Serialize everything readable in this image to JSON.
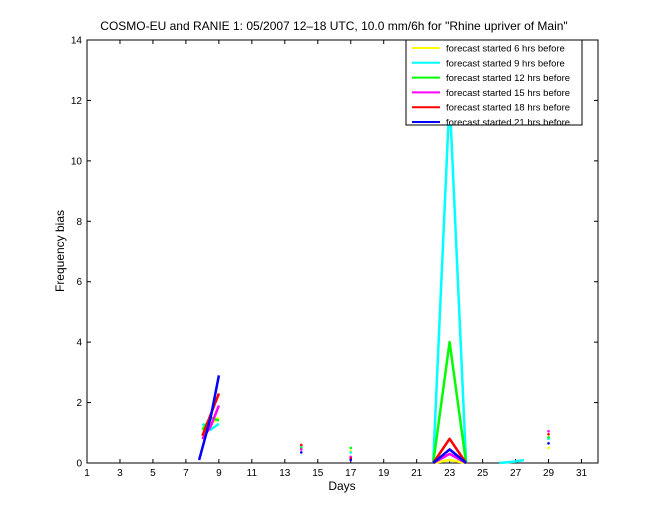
{
  "chart_data": {
    "type": "line",
    "title": "COSMO-EU and RANIE 1: 05/2007 12–18 UTC, 10.0 mm/6h for \"Rhine upriver of Main\"",
    "xlabel": "Days",
    "ylabel": "Frequency bias",
    "xlim": [
      1,
      32
    ],
    "ylim": [
      0,
      14
    ],
    "xticks": [
      1,
      3,
      5,
      7,
      9,
      11,
      13,
      15,
      17,
      19,
      21,
      23,
      25,
      27,
      29,
      31
    ],
    "yticks": [
      0,
      2,
      4,
      6,
      8,
      10,
      12,
      14
    ],
    "grid": false,
    "legend_position": "top-right",
    "series": [
      {
        "name": "forecast started 6 hrs before",
        "color": "#ffff00",
        "segments": [
          [
            [
              8.0,
              0.8
            ],
            [
              8.5,
              1.3
            ],
            [
              9.0,
              1.5
            ]
          ],
          [
            [
              22.0,
              0.0
            ],
            [
              23.0,
              0.1
            ],
            [
              24.0,
              0.0
            ]
          ]
        ],
        "points": [
          [
            14,
            0.6
          ],
          [
            17,
            0.4
          ],
          [
            29,
            0.5
          ]
        ]
      },
      {
        "name": "forecast started 9 hrs before",
        "color": "#00ffff",
        "segments": [
          [
            [
              8.0,
              1.3
            ],
            [
              8.5,
              1.1
            ],
            [
              9.0,
              1.3
            ]
          ],
          [
            [
              22.0,
              0.0
            ],
            [
              23.0,
              12.1
            ],
            [
              24.0,
              0.0
            ]
          ],
          [
            [
              26.0,
              0.0
            ],
            [
              27.0,
              0.05
            ],
            [
              27.5,
              0.1
            ]
          ]
        ],
        "points": [
          [
            14,
            0.55
          ],
          [
            17,
            0.35
          ],
          [
            29,
            0.8
          ]
        ]
      },
      {
        "name": "forecast started 12 hrs before",
        "color": "#00ff00",
        "segments": [
          [
            [
              8.0,
              1.1
            ],
            [
              8.5,
              1.5
            ],
            [
              9.0,
              1.4
            ]
          ],
          [
            [
              22.0,
              0.0
            ],
            [
              23.0,
              4.0
            ],
            [
              24.0,
              0.0
            ]
          ]
        ],
        "points": [
          [
            14,
            0.5
          ],
          [
            17,
            0.5
          ],
          [
            29,
            0.85
          ]
        ]
      },
      {
        "name": "forecast started 15 hrs before",
        "color": "#ff00ff",
        "segments": [
          [
            [
              8.0,
              0.8
            ],
            [
              8.5,
              1.2
            ],
            [
              9.0,
              1.9
            ]
          ],
          [
            [
              22.0,
              0.0
            ],
            [
              23.0,
              0.3
            ],
            [
              24.0,
              0.0
            ]
          ]
        ],
        "points": [
          [
            14,
            0.45
          ],
          [
            17,
            0.2
          ],
          [
            29,
            1.05
          ]
        ]
      },
      {
        "name": "forecast started 18 hrs before",
        "color": "#ff0000",
        "segments": [
          [
            [
              8.0,
              0.9
            ],
            [
              8.5,
              1.6
            ],
            [
              9.0,
              2.3
            ]
          ],
          [
            [
              22.0,
              0.0
            ],
            [
              23.0,
              0.8
            ],
            [
              24.0,
              0.0
            ]
          ]
        ],
        "points": [
          [
            14,
            0.6
          ],
          [
            17,
            0.15
          ],
          [
            29,
            0.95
          ]
        ]
      },
      {
        "name": "forecast started 21 hrs before",
        "color": "#0000ff",
        "segments": [
          [
            [
              7.8,
              0.1
            ],
            [
              8.5,
              1.5
            ],
            [
              9.0,
              2.9
            ]
          ],
          [
            [
              22.0,
              0.0
            ],
            [
              23.0,
              0.45
            ],
            [
              24.0,
              0.0
            ]
          ]
        ],
        "points": [
          [
            14,
            0.35
          ],
          [
            17,
            0.1
          ],
          [
            29,
            0.65
          ]
        ]
      }
    ]
  }
}
